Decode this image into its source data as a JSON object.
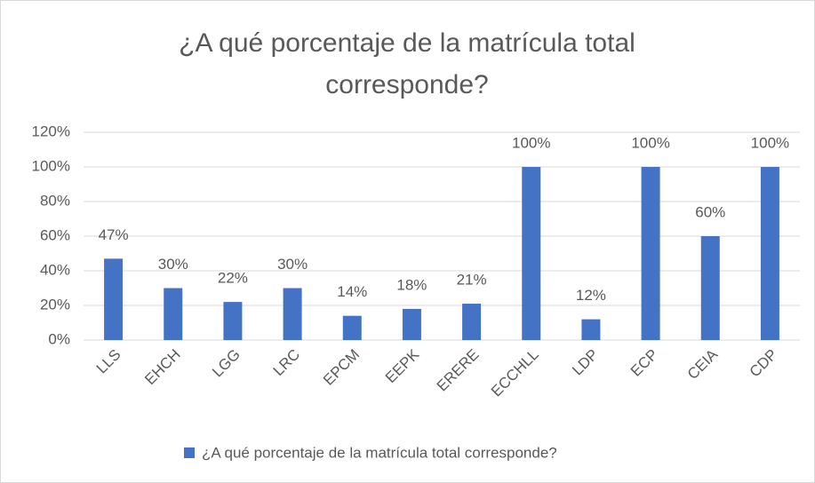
{
  "chart_data": {
    "type": "bar",
    "title": "¿A qué porcentaje de la matrícula total corresponde?",
    "categories": [
      "LLS",
      "EHCH",
      "LGG",
      "LRC",
      "EPCM",
      "EEPK",
      "ERERE",
      "ECCHLL",
      "LDP",
      "ECP",
      "CEIA",
      "CDP"
    ],
    "series": [
      {
        "name": "¿A qué porcentaje de la matrícula total corresponde?",
        "color": "#4472c4",
        "values": [
          47,
          30,
          22,
          30,
          14,
          18,
          21,
          100,
          12,
          100,
          60,
          100
        ],
        "value_labels": [
          "47%",
          "30%",
          "22%",
          "30%",
          "14%",
          "18%",
          "21%",
          "100%",
          "12%",
          "100%",
          "60%",
          "100%"
        ]
      }
    ],
    "ylim": [
      0,
      120
    ],
    "yticks": [
      {
        "value": 0,
        "label": "0%"
      },
      {
        "value": 20,
        "label": "20%"
      },
      {
        "value": 40,
        "label": "40%"
      },
      {
        "value": 60,
        "label": "60%"
      },
      {
        "value": 80,
        "label": "80%"
      },
      {
        "value": 100,
        "label": "100%"
      },
      {
        "value": 120,
        "label": "120%"
      }
    ],
    "grid": true,
    "legend": "bottom"
  }
}
